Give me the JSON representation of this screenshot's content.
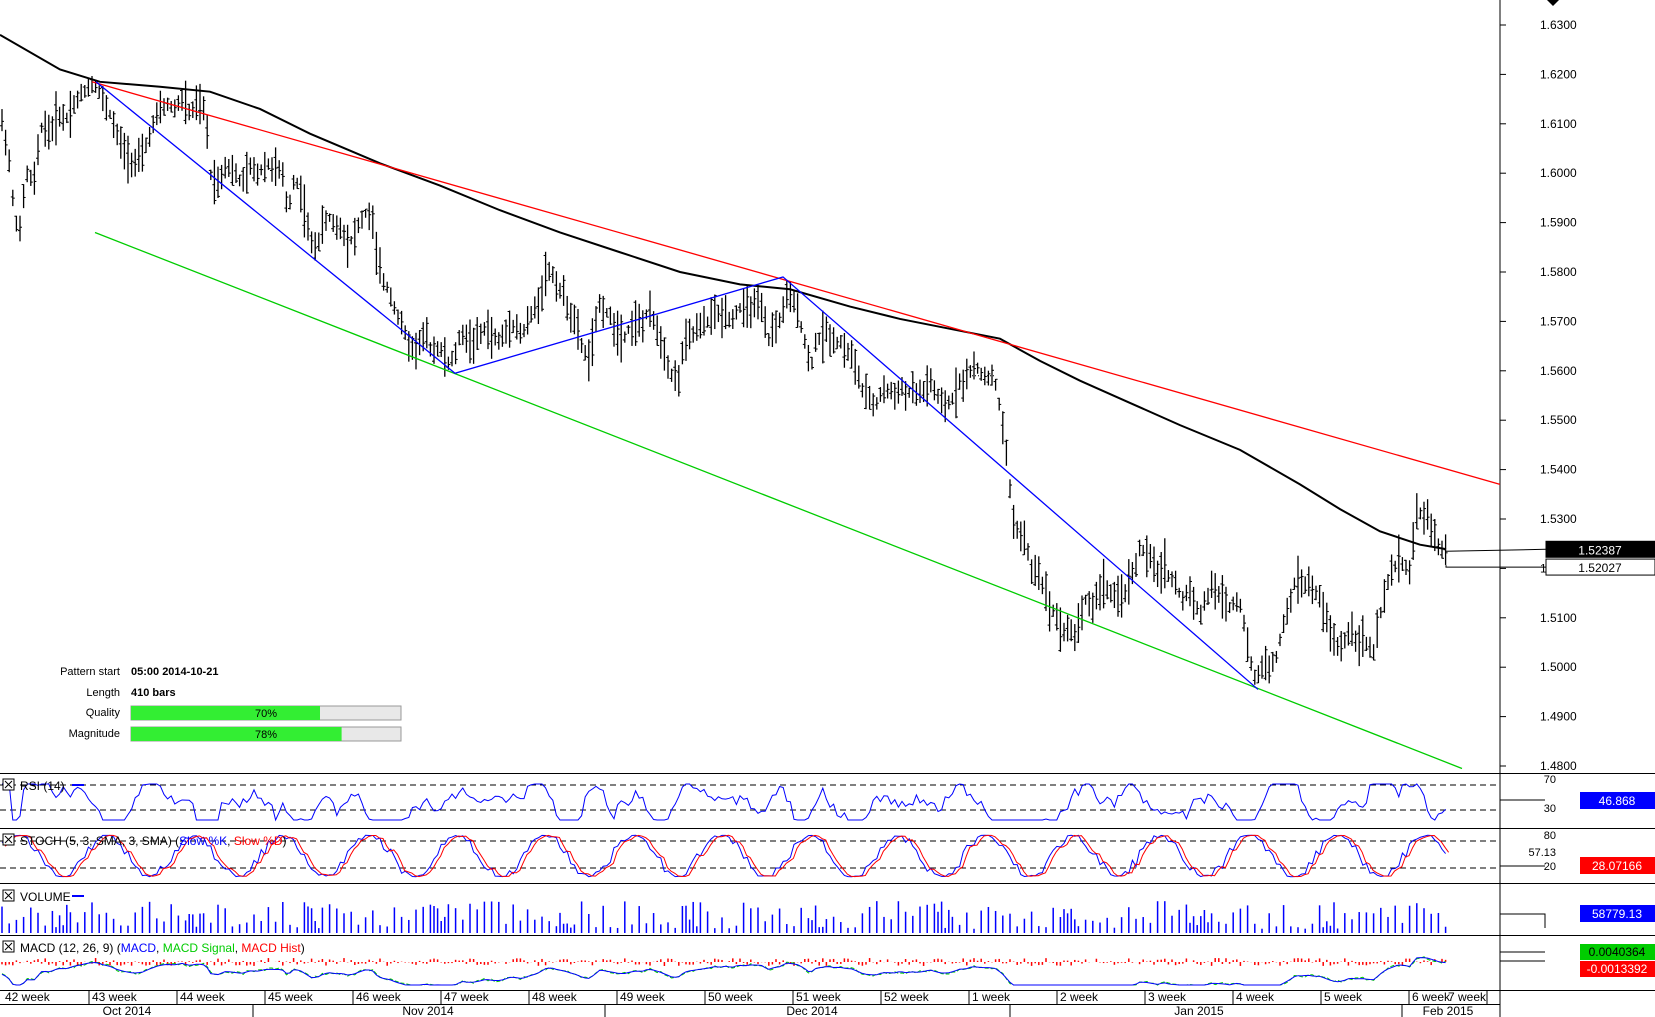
{
  "chart_data": {
    "type": "candlestick",
    "y_axis": {
      "ylim": [
        1.478,
        1.634
      ],
      "ticks": [
        "1.6300",
        "1.6200",
        "1.6100",
        "1.6000",
        "1.5900",
        "1.5800",
        "1.5700",
        "1.5600",
        "1.5500",
        "1.5400",
        "1.5300",
        "1.5200",
        "1.5100",
        "1.5000",
        "1.4900",
        "1.4800"
      ]
    },
    "x_axis": {
      "week_labels": [
        "42 week",
        "43 week",
        "44 week",
        "45 week",
        "46 week",
        "47 week",
        "48 week",
        "49 week",
        "50 week",
        "51 week",
        "52 week",
        "1 week",
        "2 week",
        "3 week",
        "4 week",
        "5 week",
        "6 week",
        "7 week"
      ],
      "month_labels": [
        "Oct 2014",
        "Nov 2014",
        "Dec 2014",
        "Jan 2015",
        "Feb 2015"
      ]
    },
    "price_path": [
      [
        0,
        1.612
      ],
      [
        8,
        1.605
      ],
      [
        14,
        1.592
      ],
      [
        20,
        1.588
      ],
      [
        26,
        1.6
      ],
      [
        34,
        1.598
      ],
      [
        42,
        1.61
      ],
      [
        50,
        1.608
      ],
      [
        58,
        1.612
      ],
      [
        66,
        1.611
      ],
      [
        74,
        1.614
      ],
      [
        82,
        1.616
      ],
      [
        90,
        1.618
      ],
      [
        96,
        1.618
      ],
      [
        102,
        1.615
      ],
      [
        110,
        1.612
      ],
      [
        118,
        1.607
      ],
      [
        126,
        1.604
      ],
      [
        134,
        1.602
      ],
      [
        142,
        1.603
      ],
      [
        150,
        1.608
      ],
      [
        158,
        1.612
      ],
      [
        166,
        1.614
      ],
      [
        174,
        1.613
      ],
      [
        182,
        1.615
      ],
      [
        190,
        1.612
      ],
      [
        198,
        1.614
      ],
      [
        206,
        1.612
      ],
      [
        210,
        1.6
      ],
      [
        218,
        1.598
      ],
      [
        226,
        1.602
      ],
      [
        234,
        1.6
      ],
      [
        242,
        1.598
      ],
      [
        250,
        1.601
      ],
      [
        258,
        1.6
      ],
      [
        266,
        1.602
      ],
      [
        274,
        1.601
      ],
      [
        282,
        1.6
      ],
      [
        288,
        1.592
      ],
      [
        294,
        1.599
      ],
      [
        300,
        1.597
      ],
      [
        306,
        1.591
      ],
      [
        312,
        1.585
      ],
      [
        318,
        1.586
      ],
      [
        324,
        1.59
      ],
      [
        330,
        1.591
      ],
      [
        336,
        1.589
      ],
      [
        342,
        1.589
      ],
      [
        348,
        1.586
      ],
      [
        354,
        1.587
      ],
      [
        360,
        1.59
      ],
      [
        366,
        1.592
      ],
      [
        372,
        1.591
      ],
      [
        378,
        1.581
      ],
      [
        384,
        1.578
      ],
      [
        390,
        1.576
      ],
      [
        396,
        1.572
      ],
      [
        402,
        1.569
      ],
      [
        408,
        1.566
      ],
      [
        414,
        1.564
      ],
      [
        420,
        1.566
      ],
      [
        426,
        1.567
      ],
      [
        432,
        1.564
      ],
      [
        438,
        1.565
      ],
      [
        444,
        1.563
      ],
      [
        450,
        1.561
      ],
      [
        456,
        1.564
      ],
      [
        462,
        1.568
      ],
      [
        468,
        1.566
      ],
      [
        474,
        1.566
      ],
      [
        480,
        1.567
      ],
      [
        486,
        1.569
      ],
      [
        492,
        1.567
      ],
      [
        498,
        1.566
      ],
      [
        504,
        1.567
      ],
      [
        510,
        1.57
      ],
      [
        516,
        1.569
      ],
      [
        522,
        1.567
      ],
      [
        528,
        1.57
      ],
      [
        534,
        1.572
      ],
      [
        540,
        1.575
      ],
      [
        546,
        1.58
      ],
      [
        552,
        1.58
      ],
      [
        558,
        1.577
      ],
      [
        564,
        1.575
      ],
      [
        570,
        1.572
      ],
      [
        576,
        1.569
      ],
      [
        582,
        1.565
      ],
      [
        588,
        1.562
      ],
      [
        594,
        1.567
      ],
      [
        600,
        1.574
      ],
      [
        606,
        1.572
      ],
      [
        612,
        1.57
      ],
      [
        618,
        1.568
      ],
      [
        624,
        1.567
      ],
      [
        630,
        1.569
      ],
      [
        636,
        1.57
      ],
      [
        642,
        1.569
      ],
      [
        648,
        1.572
      ],
      [
        654,
        1.57
      ],
      [
        660,
        1.567
      ],
      [
        666,
        1.563
      ],
      [
        672,
        1.559
      ],
      [
        678,
        1.558
      ],
      [
        684,
        1.565
      ],
      [
        690,
        1.567
      ],
      [
        696,
        1.568
      ],
      [
        702,
        1.569
      ],
      [
        708,
        1.57
      ],
      [
        714,
        1.572
      ],
      [
        720,
        1.571
      ],
      [
        726,
        1.572
      ],
      [
        732,
        1.57
      ],
      [
        738,
        1.573
      ],
      [
        744,
        1.572
      ],
      [
        750,
        1.573
      ],
      [
        756,
        1.573
      ],
      [
        762,
        1.572
      ],
      [
        768,
        1.566
      ],
      [
        774,
        1.569
      ],
      [
        780,
        1.57
      ],
      [
        786,
        1.575
      ],
      [
        792,
        1.574
      ],
      [
        798,
        1.572
      ],
      [
        804,
        1.567
      ],
      [
        810,
        1.56
      ],
      [
        816,
        1.566
      ],
      [
        822,
        1.567
      ],
      [
        828,
        1.568
      ],
      [
        834,
        1.566
      ],
      [
        840,
        1.566
      ],
      [
        846,
        1.564
      ],
      [
        852,
        1.563
      ],
      [
        858,
        1.559
      ],
      [
        864,
        1.555
      ],
      [
        870,
        1.554
      ],
      [
        876,
        1.553
      ],
      [
        882,
        1.556
      ],
      [
        888,
        1.556
      ],
      [
        894,
        1.555
      ],
      [
        900,
        1.557
      ],
      [
        906,
        1.555
      ],
      [
        912,
        1.556
      ],
      [
        918,
        1.555
      ],
      [
        924,
        1.556
      ],
      [
        930,
        1.558
      ],
      [
        936,
        1.555
      ],
      [
        942,
        1.553
      ],
      [
        948,
        1.553
      ],
      [
        954,
        1.555
      ],
      [
        960,
        1.558
      ],
      [
        966,
        1.558
      ],
      [
        972,
        1.561
      ],
      [
        978,
        1.56
      ],
      [
        984,
        1.559
      ],
      [
        990,
        1.559
      ],
      [
        996,
        1.557
      ],
      [
        1002,
        1.55
      ],
      [
        1008,
        1.54
      ],
      [
        1014,
        1.529
      ],
      [
        1020,
        1.527
      ],
      [
        1026,
        1.525
      ],
      [
        1032,
        1.519
      ],
      [
        1038,
        1.52
      ],
      [
        1044,
        1.516
      ],
      [
        1050,
        1.512
      ],
      [
        1056,
        1.511
      ],
      [
        1062,
        1.507
      ],
      [
        1068,
        1.508
      ],
      [
        1074,
        1.506
      ],
      [
        1080,
        1.51
      ],
      [
        1086,
        1.514
      ],
      [
        1092,
        1.512
      ],
      [
        1098,
        1.515
      ],
      [
        1104,
        1.517
      ],
      [
        1110,
        1.515
      ],
      [
        1116,
        1.513
      ],
      [
        1122,
        1.515
      ],
      [
        1128,
        1.516
      ],
      [
        1134,
        1.52
      ],
      [
        1140,
        1.524
      ],
      [
        1146,
        1.523
      ],
      [
        1152,
        1.521
      ],
      [
        1158,
        1.519
      ],
      [
        1164,
        1.521
      ],
      [
        1170,
        1.518
      ],
      [
        1176,
        1.517
      ],
      [
        1182,
        1.513
      ],
      [
        1188,
        1.516
      ],
      [
        1194,
        1.514
      ],
      [
        1200,
        1.51
      ],
      [
        1206,
        1.514
      ],
      [
        1212,
        1.516
      ],
      [
        1218,
        1.515
      ],
      [
        1224,
        1.514
      ],
      [
        1230,
        1.512
      ],
      [
        1236,
        1.514
      ],
      [
        1242,
        1.512
      ],
      [
        1248,
        1.503
      ],
      [
        1254,
        1.498
      ],
      [
        1260,
        1.499
      ],
      [
        1266,
        1.501
      ],
      [
        1272,
        1.5
      ],
      [
        1278,
        1.503
      ],
      [
        1284,
        1.509
      ],
      [
        1290,
        1.513
      ],
      [
        1296,
        1.518
      ],
      [
        1302,
        1.517
      ],
      [
        1308,
        1.517
      ],
      [
        1314,
        1.515
      ],
      [
        1320,
        1.514
      ],
      [
        1326,
        1.51
      ],
      [
        1332,
        1.506
      ],
      [
        1338,
        1.504
      ],
      [
        1344,
        1.505
      ],
      [
        1350,
        1.508
      ],
      [
        1356,
        1.506
      ],
      [
        1362,
        1.506
      ],
      [
        1368,
        1.504
      ],
      [
        1374,
        1.503
      ],
      [
        1380,
        1.51
      ],
      [
        1386,
        1.516
      ],
      [
        1392,
        1.519
      ],
      [
        1398,
        1.522
      ],
      [
        1404,
        1.521
      ],
      [
        1410,
        1.519
      ],
      [
        1416,
        1.531
      ],
      [
        1422,
        1.531
      ],
      [
        1428,
        1.53
      ],
      [
        1434,
        1.527
      ],
      [
        1440,
        1.524
      ],
      [
        1446,
        1.523
      ]
    ],
    "sma": [
      [
        0,
        1.628
      ],
      [
        60,
        1.621
      ],
      [
        100,
        1.6185
      ],
      [
        160,
        1.6175
      ],
      [
        210,
        1.6165
      ],
      [
        260,
        1.613
      ],
      [
        310,
        1.608
      ],
      [
        380,
        1.602
      ],
      [
        440,
        1.5975
      ],
      [
        500,
        1.5925
      ],
      [
        560,
        1.588
      ],
      [
        620,
        1.584
      ],
      [
        680,
        1.58
      ],
      [
        740,
        1.5775
      ],
      [
        790,
        1.5765
      ],
      [
        850,
        1.573
      ],
      [
        900,
        1.5705
      ],
      [
        950,
        1.5685
      ],
      [
        1000,
        1.5665
      ],
      [
        1040,
        1.562
      ],
      [
        1080,
        1.558
      ],
      [
        1130,
        1.5535
      ],
      [
        1180,
        1.549
      ],
      [
        1240,
        1.544
      ],
      [
        1300,
        1.537
      ],
      [
        1340,
        1.532
      ],
      [
        1380,
        1.5275
      ],
      [
        1420,
        1.5248
      ],
      [
        1446,
        1.5239
      ]
    ],
    "trend_lines": {
      "resistance": {
        "color": "#ff0000",
        "points": [
          [
            92,
            1.6185
          ],
          [
            1500,
            1.537
          ]
        ]
      },
      "support": {
        "color": "#00cc00",
        "points": [
          [
            95,
            1.588
          ],
          [
            1462,
            1.4795
          ]
        ]
      },
      "pattern_zigzag": {
        "color": "#0000ff",
        "points": [
          [
            96,
            1.6185
          ],
          [
            455,
            1.5595
          ],
          [
            783,
            1.579
          ],
          [
            1258,
            1.4955
          ]
        ]
      }
    },
    "dotted_segment": {
      "points": [
        [
          972,
          1.559
        ],
        [
          996,
          1.559
        ]
      ]
    },
    "price_labels": [
      {
        "label": "1.52387",
        "value": 1.52387,
        "bg": "#000000",
        "fg": "#ffffff"
      },
      {
        "label": "1.52027",
        "value": 1.52027,
        "bg": "#ffffff",
        "fg": "#000000"
      }
    ],
    "pattern_info": {
      "pattern_start_label": "Pattern start",
      "pattern_start": "05:00 2014-10-21",
      "length_label": "Length",
      "length": "410 bars",
      "quality_label": "Quality",
      "quality": 0.7,
      "quality_text": "70%",
      "magnitude_label": "Magnitude",
      "magnitude": 0.78,
      "magnitude_text": "78%"
    },
    "indicators": {
      "rsi": {
        "title": "RSI (14)",
        "upper_level": "70",
        "lower_level": "30",
        "value": "46.868",
        "value_bg": "#0000ff"
      },
      "stoch": {
        "title_parts": [
          [
            "STOCH (5, 3, SMA, 3, SMA) (",
            "#000000"
          ],
          [
            "Slow %K",
            "#0000ff"
          ],
          [
            ", ",
            "#000000"
          ],
          [
            "Slow %D",
            "#ff0000"
          ],
          [
            ")",
            "#000000"
          ]
        ],
        "upper_level": "80",
        "lower_level": "20",
        "mid_value": "57.13",
        "value": "28.07166",
        "value_bg": "#ff0000"
      },
      "volume": {
        "title": "VOLUME",
        "value": "58779.13",
        "value_bg": "#0000ff"
      },
      "macd": {
        "title_parts": [
          [
            "MACD (12, 26, 9) (",
            "#000000"
          ],
          [
            "MACD",
            "#0000ff"
          ],
          [
            ", ",
            "#000000"
          ],
          [
            "MACD Signal",
            "#00cc00"
          ],
          [
            ", ",
            "#000000"
          ],
          [
            "MACD Hist",
            "#ff0000"
          ],
          [
            ")",
            "#000000"
          ]
        ],
        "value1": "0.0040364",
        "value1_bg": "#00cc00",
        "value2": "-0.0013392",
        "value2_bg": "#ff0000"
      }
    },
    "colors": {
      "candle": "#000000",
      "sma": "#000000",
      "rsi": "#0000ff",
      "stoch_k": "#0000ff",
      "stoch_d": "#ff0000",
      "volume": "#0000ff",
      "macd": "#0000ff",
      "macd_signal": "#00cc00",
      "macd_hist": "#ff0000"
    }
  }
}
